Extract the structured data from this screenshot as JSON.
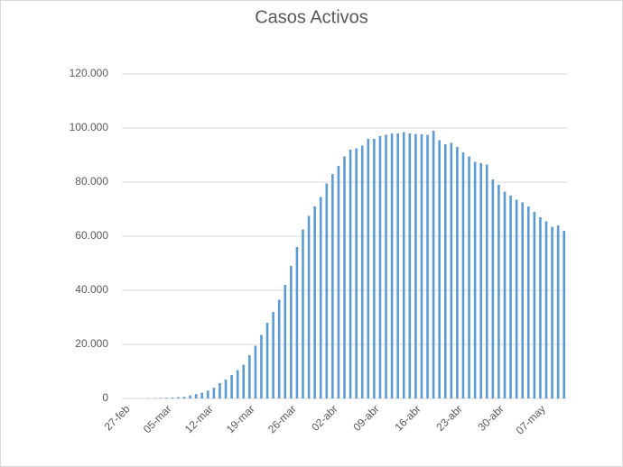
{
  "chart_data": {
    "type": "bar",
    "title": "Casos Activos",
    "categories": [
      "27-feb",
      null,
      null,
      null,
      null,
      null,
      null,
      "05-mar",
      null,
      null,
      null,
      null,
      null,
      null,
      "12-mar",
      null,
      null,
      null,
      null,
      null,
      null,
      "19-mar",
      null,
      null,
      null,
      null,
      null,
      null,
      "26-mar",
      null,
      null,
      null,
      null,
      null,
      null,
      "02-abr",
      null,
      null,
      null,
      null,
      null,
      null,
      "09-abr",
      null,
      null,
      null,
      null,
      null,
      null,
      "16-abr",
      null,
      null,
      null,
      null,
      null,
      null,
      "23-abr",
      null,
      null,
      null,
      null,
      null,
      null,
      "30-abr",
      null,
      null,
      null,
      null,
      null,
      null,
      "07-may",
      null,
      null,
      null,
      null
    ],
    "values": [
      10,
      20,
      40,
      80,
      110,
      160,
      210,
      260,
      360,
      480,
      620,
      1100,
      1600,
      2100,
      2900,
      4000,
      5700,
      7000,
      8700,
      10500,
      12500,
      16000,
      19500,
      23500,
      28000,
      32000,
      36500,
      42000,
      49000,
      56000,
      62500,
      67500,
      71000,
      74500,
      79500,
      83000,
      86000,
      89500,
      92000,
      92500,
      93500,
      96000,
      96000,
      97000,
      97500,
      98000,
      98000,
      98500,
      98000,
      97800,
      97700,
      97500,
      99000,
      95500,
      94000,
      94500,
      93000,
      91000,
      89500,
      87500,
      87000,
      86500,
      81000,
      79000,
      76500,
      75000,
      73500,
      72500,
      71000,
      69000,
      67000,
      65500,
      63500,
      64000,
      62000
    ],
    "color": "#5b9bd5",
    "ylim": [
      0,
      120000
    ],
    "yticks": [
      0,
      {
        "value": 20000,
        "label": "20.000"
      },
      {
        "value": 40000,
        "label": "40.000"
      },
      {
        "value": 60000,
        "label": "60.000"
      },
      {
        "value": 80000,
        "label": "80.000"
      },
      {
        "value": 100000,
        "label": "100.000"
      },
      {
        "value": 120000,
        "label": "120.000"
      }
    ],
    "grid": true
  }
}
